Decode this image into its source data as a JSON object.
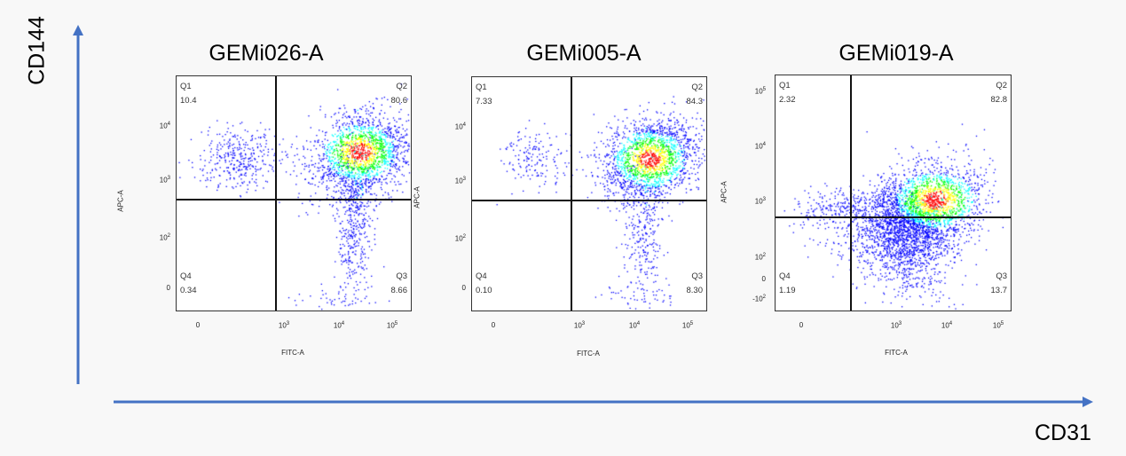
{
  "figure": {
    "outer_y_label": "CD144",
    "outer_x_label": "CD31",
    "arrow_color": "#4472c4"
  },
  "chart_data": {
    "type": "scatter",
    "subtype": "flow-cytometry-density-dot-plot",
    "title": "",
    "xlabel": "CD31",
    "ylabel": "CD144",
    "color_scale": [
      "#0000ff",
      "#00ffff",
      "#00ff00",
      "#ffff00",
      "#ff0000"
    ],
    "panels": [
      {
        "title": "GEMi026-A",
        "xlabel": "FITC-A",
        "ylabel": "APC-A",
        "x_ticks": [
          "0",
          "10^3",
          "10^4",
          "10^5"
        ],
        "y_ticks": [
          "0",
          "10^2",
          "10^3",
          "10^4"
        ],
        "quadrants": {
          "Q1": {
            "label": "Q1",
            "value": "10.4"
          },
          "Q2": {
            "label": "Q2",
            "value": "80.6"
          },
          "Q3": {
            "label": "Q3",
            "value": "8.66"
          },
          "Q4": {
            "label": "Q4",
            "value": "0.34"
          }
        }
      },
      {
        "title": "GEMi005-A",
        "xlabel": "FITC-A",
        "ylabel": "APC-A",
        "x_ticks": [
          "0",
          "10^3",
          "10^4",
          "10^5"
        ],
        "y_ticks": [
          "0",
          "10^2",
          "10^3",
          "10^4"
        ],
        "quadrants": {
          "Q1": {
            "label": "Q1",
            "value": "7.33"
          },
          "Q2": {
            "label": "Q2",
            "value": "84.3"
          },
          "Q3": {
            "label": "Q3",
            "value": "8.30"
          },
          "Q4": {
            "label": "Q4",
            "value": "0.10"
          }
        }
      },
      {
        "title": "GEMi019-A",
        "xlabel": "FITC-A",
        "ylabel": "APC-A",
        "x_ticks": [
          "0",
          "10^3",
          "10^4",
          "10^5"
        ],
        "y_ticks": [
          "-10^2",
          "0",
          "10^2",
          "10^3",
          "10^4",
          "10^5"
        ],
        "quadrants": {
          "Q1": {
            "label": "Q1",
            "value": "2.32"
          },
          "Q2": {
            "label": "Q2",
            "value": "82.8"
          },
          "Q3": {
            "label": "Q3",
            "value": "13.7"
          },
          "Q4": {
            "label": "Q4",
            "value": "1.19"
          }
        }
      }
    ]
  }
}
